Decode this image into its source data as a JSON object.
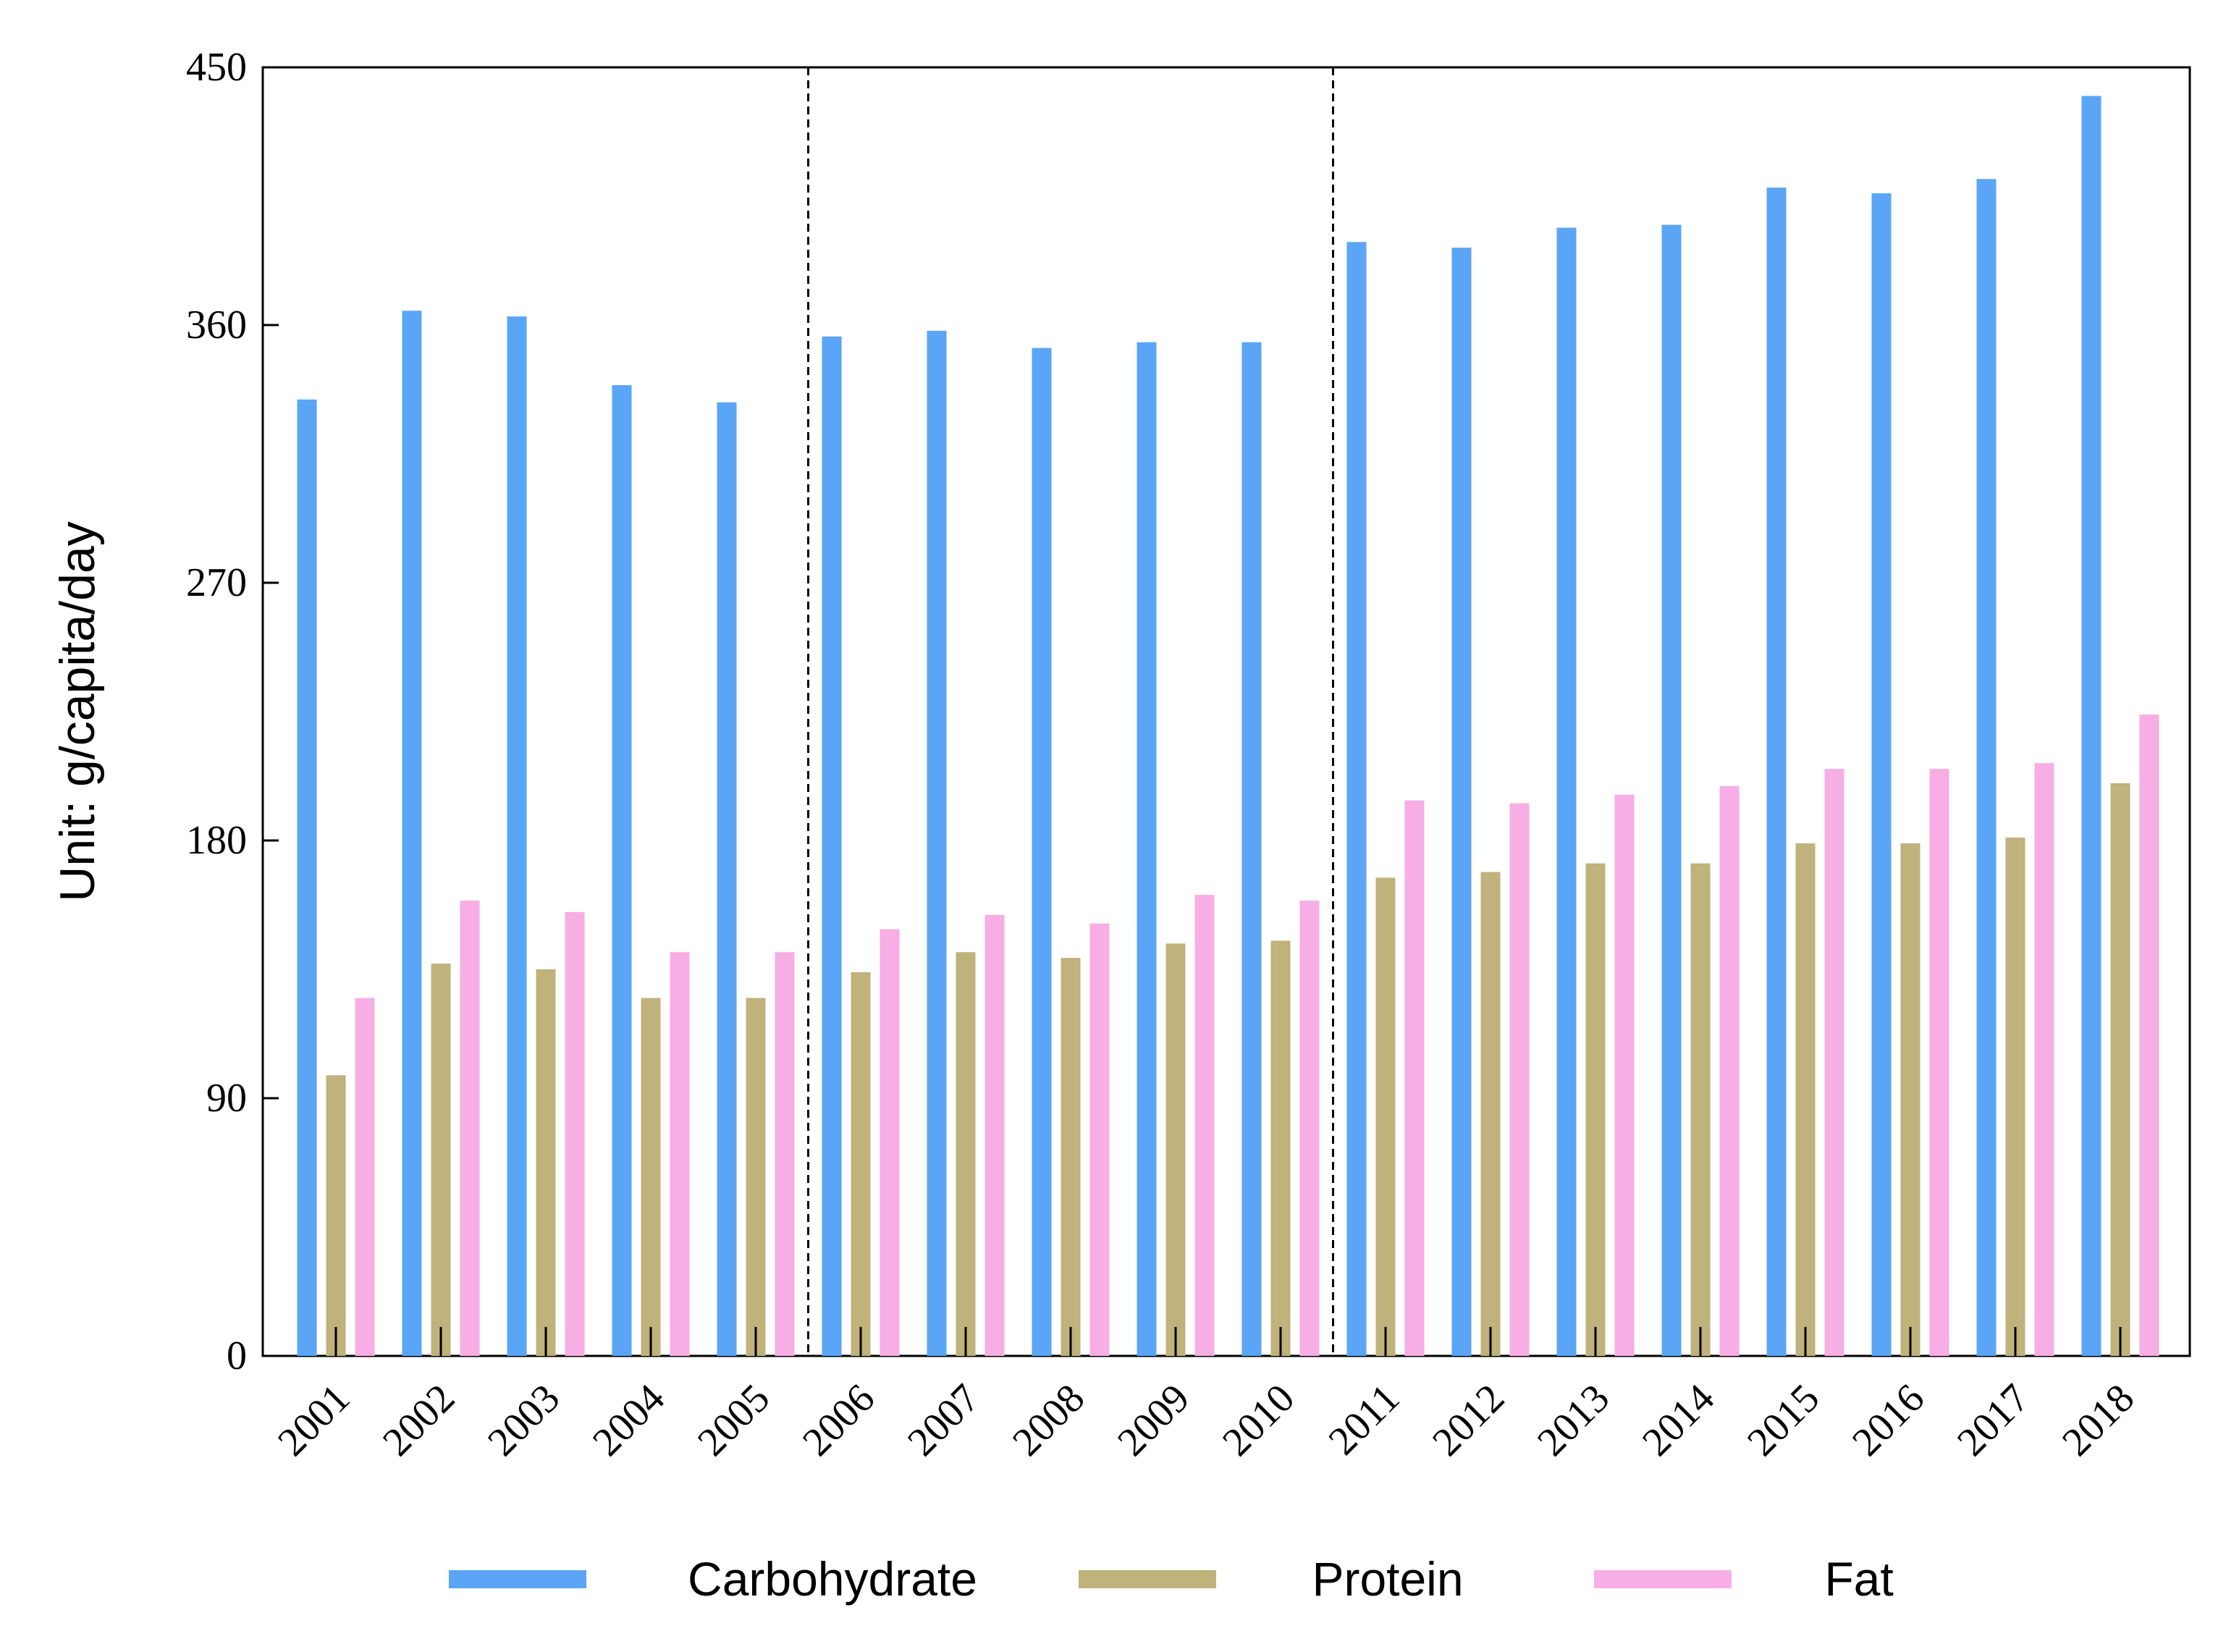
{
  "chart_data": {
    "type": "bar",
    "title": "",
    "xlabel": "",
    "ylabel": "Unit: g/capita/day",
    "ylim": [
      0,
      450
    ],
    "yticks": [
      "0",
      "90",
      "180",
      "270",
      "360",
      "450"
    ],
    "grid": false,
    "legend_position": "bottom",
    "period_dividers_after": [
      "2005",
      "2010"
    ],
    "categories": [
      "2001",
      "2002",
      "2003",
      "2004",
      "2005",
      "2006",
      "2007",
      "2008",
      "2009",
      "2010",
      "2011",
      "2012",
      "2013",
      "2014",
      "2015",
      "2016",
      "2017",
      "2018"
    ],
    "series": [
      {
        "name": "Carbohydrate",
        "color": "#5aa5f5",
        "values": [
          334,
          365,
          363,
          339,
          333,
          356,
          358,
          352,
          354,
          354,
          389,
          387,
          394,
          395,
          408,
          406,
          411,
          440
        ]
      },
      {
        "name": "Protein",
        "color": "#bfb27a",
        "values": [
          98,
          137,
          135,
          125,
          125,
          134,
          141,
          139,
          144,
          145,
          167,
          169,
          172,
          172,
          179,
          179,
          181,
          200
        ]
      },
      {
        "name": "Fat",
        "color": "#f7aee4",
        "values": [
          125,
          159,
          155,
          141,
          141,
          149,
          154,
          151,
          161,
          159,
          194,
          193,
          196,
          199,
          205,
          205,
          207,
          224
        ]
      }
    ]
  }
}
